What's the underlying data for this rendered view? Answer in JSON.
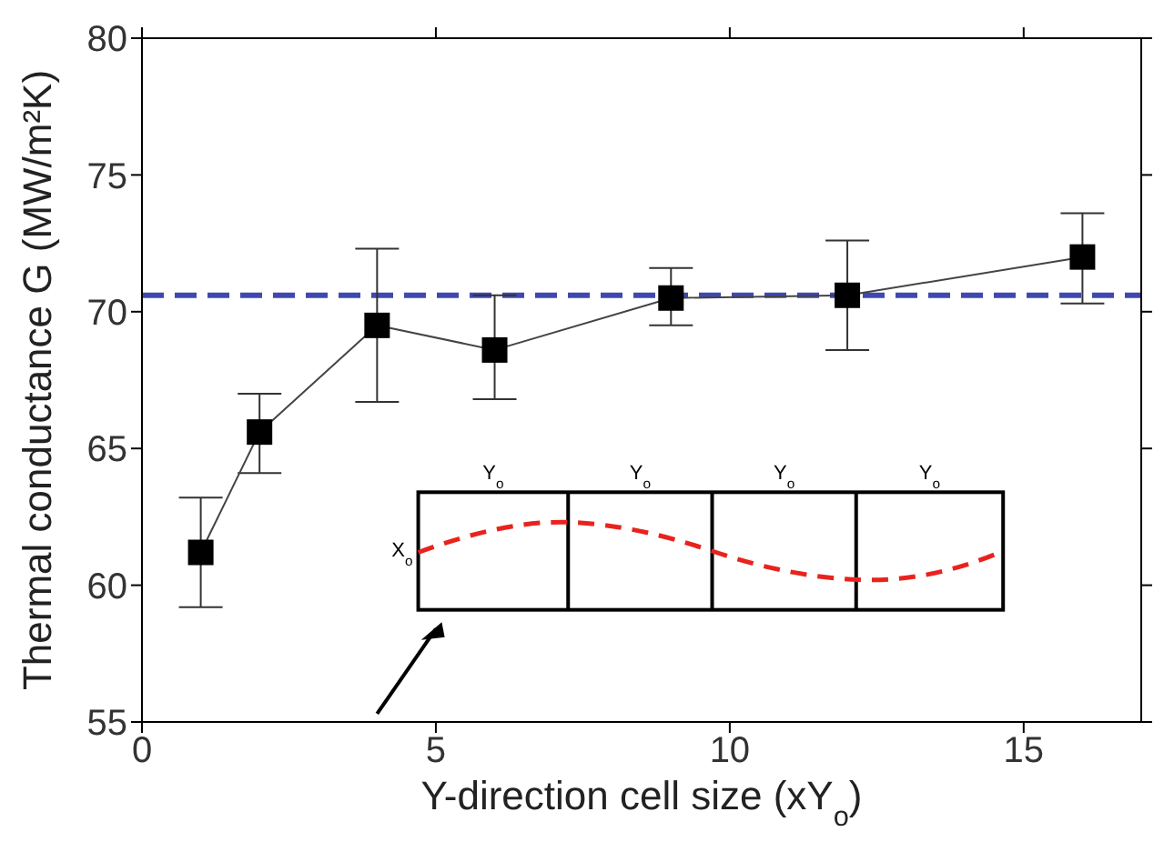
{
  "chart_data": {
    "type": "line",
    "xlabel": "Y-direction cell size (xY$_{o}$)",
    "ylabel": "Thermal conductance G (MW/m²K)",
    "x": [
      1,
      2,
      4,
      6,
      9,
      12,
      16
    ],
    "series": [
      {
        "color": "#000000",
        "values": [
          61.2,
          65.6,
          69.5,
          68.6,
          70.5,
          70.6,
          72.0
        ],
        "errors": [
          [
            59.2,
            63.2
          ],
          [
            64.1,
            67.0
          ],
          [
            66.7,
            72.3
          ],
          [
            66.8,
            70.6
          ],
          [
            69.5,
            71.6
          ],
          [
            68.6,
            72.6
          ],
          [
            70.3,
            73.6
          ]
        ]
      }
    ],
    "marker": "square",
    "line_style": "solid",
    "xlim": [
      0,
      17
    ],
    "xticks": [
      0,
      5,
      10,
      15
    ],
    "ylim": [
      55,
      80
    ],
    "yticks": [
      55,
      60,
      65,
      70,
      75,
      80
    ],
    "legend": false,
    "ref_lines": [
      {
        "axis": "y",
        "value": 70.6,
        "color": "#3f48b0",
        "line_style": "dashed"
      }
    ],
    "annotations": [
      "Y$_{o}$",
      "Y$_{o}$",
      "Y$_{o}$",
      "Y$_{o}$",
      "X$_{o}$"
    ]
  }
}
